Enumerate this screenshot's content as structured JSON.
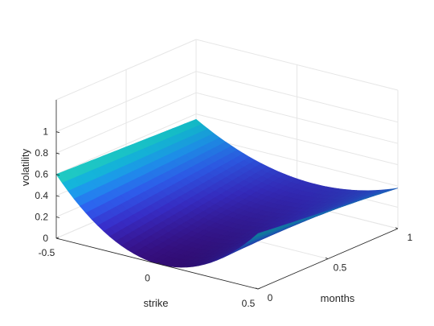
{
  "chart_data": {
    "type": "surface",
    "title": "",
    "xlabel": "strike",
    "ylabel": "months",
    "zlabel": "volatility",
    "xlim": [
      -0.5,
      0.5
    ],
    "ylim": [
      0,
      1
    ],
    "zlim": [
      0,
      1.3
    ],
    "xticks": [
      -0.5,
      0,
      0.5
    ],
    "xtick_labels": [
      "-0.5",
      "0",
      "0.5"
    ],
    "yticks": [
      0,
      0.5,
      1
    ],
    "ytick_labels": [
      "0",
      "0.5",
      "1"
    ],
    "zticks": [
      0,
      0.2,
      0.4,
      0.6,
      0.8,
      1
    ],
    "ztick_labels": [
      "0",
      "0.2",
      "0.4",
      "0.6",
      "0.8",
      "1"
    ],
    "grid": true,
    "colormap": [
      "#3b0f8a",
      "#3a2fd0",
      "#2f5ff2",
      "#1e95f0",
      "#12c0d2",
      "#34d2a9"
    ],
    "surface_samples": [
      {
        "strike": -0.5,
        "months": 0,
        "volatility": 0.6
      },
      {
        "strike": 0,
        "months": 0,
        "volatility": 0.0
      },
      {
        "strike": 0.5,
        "months": 0,
        "volatility": 0.52
      },
      {
        "strike": -0.5,
        "months": 1,
        "volatility": 0.55
      },
      {
        "strike": 0,
        "months": 1,
        "volatility": 0.23
      },
      {
        "strike": 0.5,
        "months": 1,
        "volatility": 0.38
      }
    ]
  }
}
